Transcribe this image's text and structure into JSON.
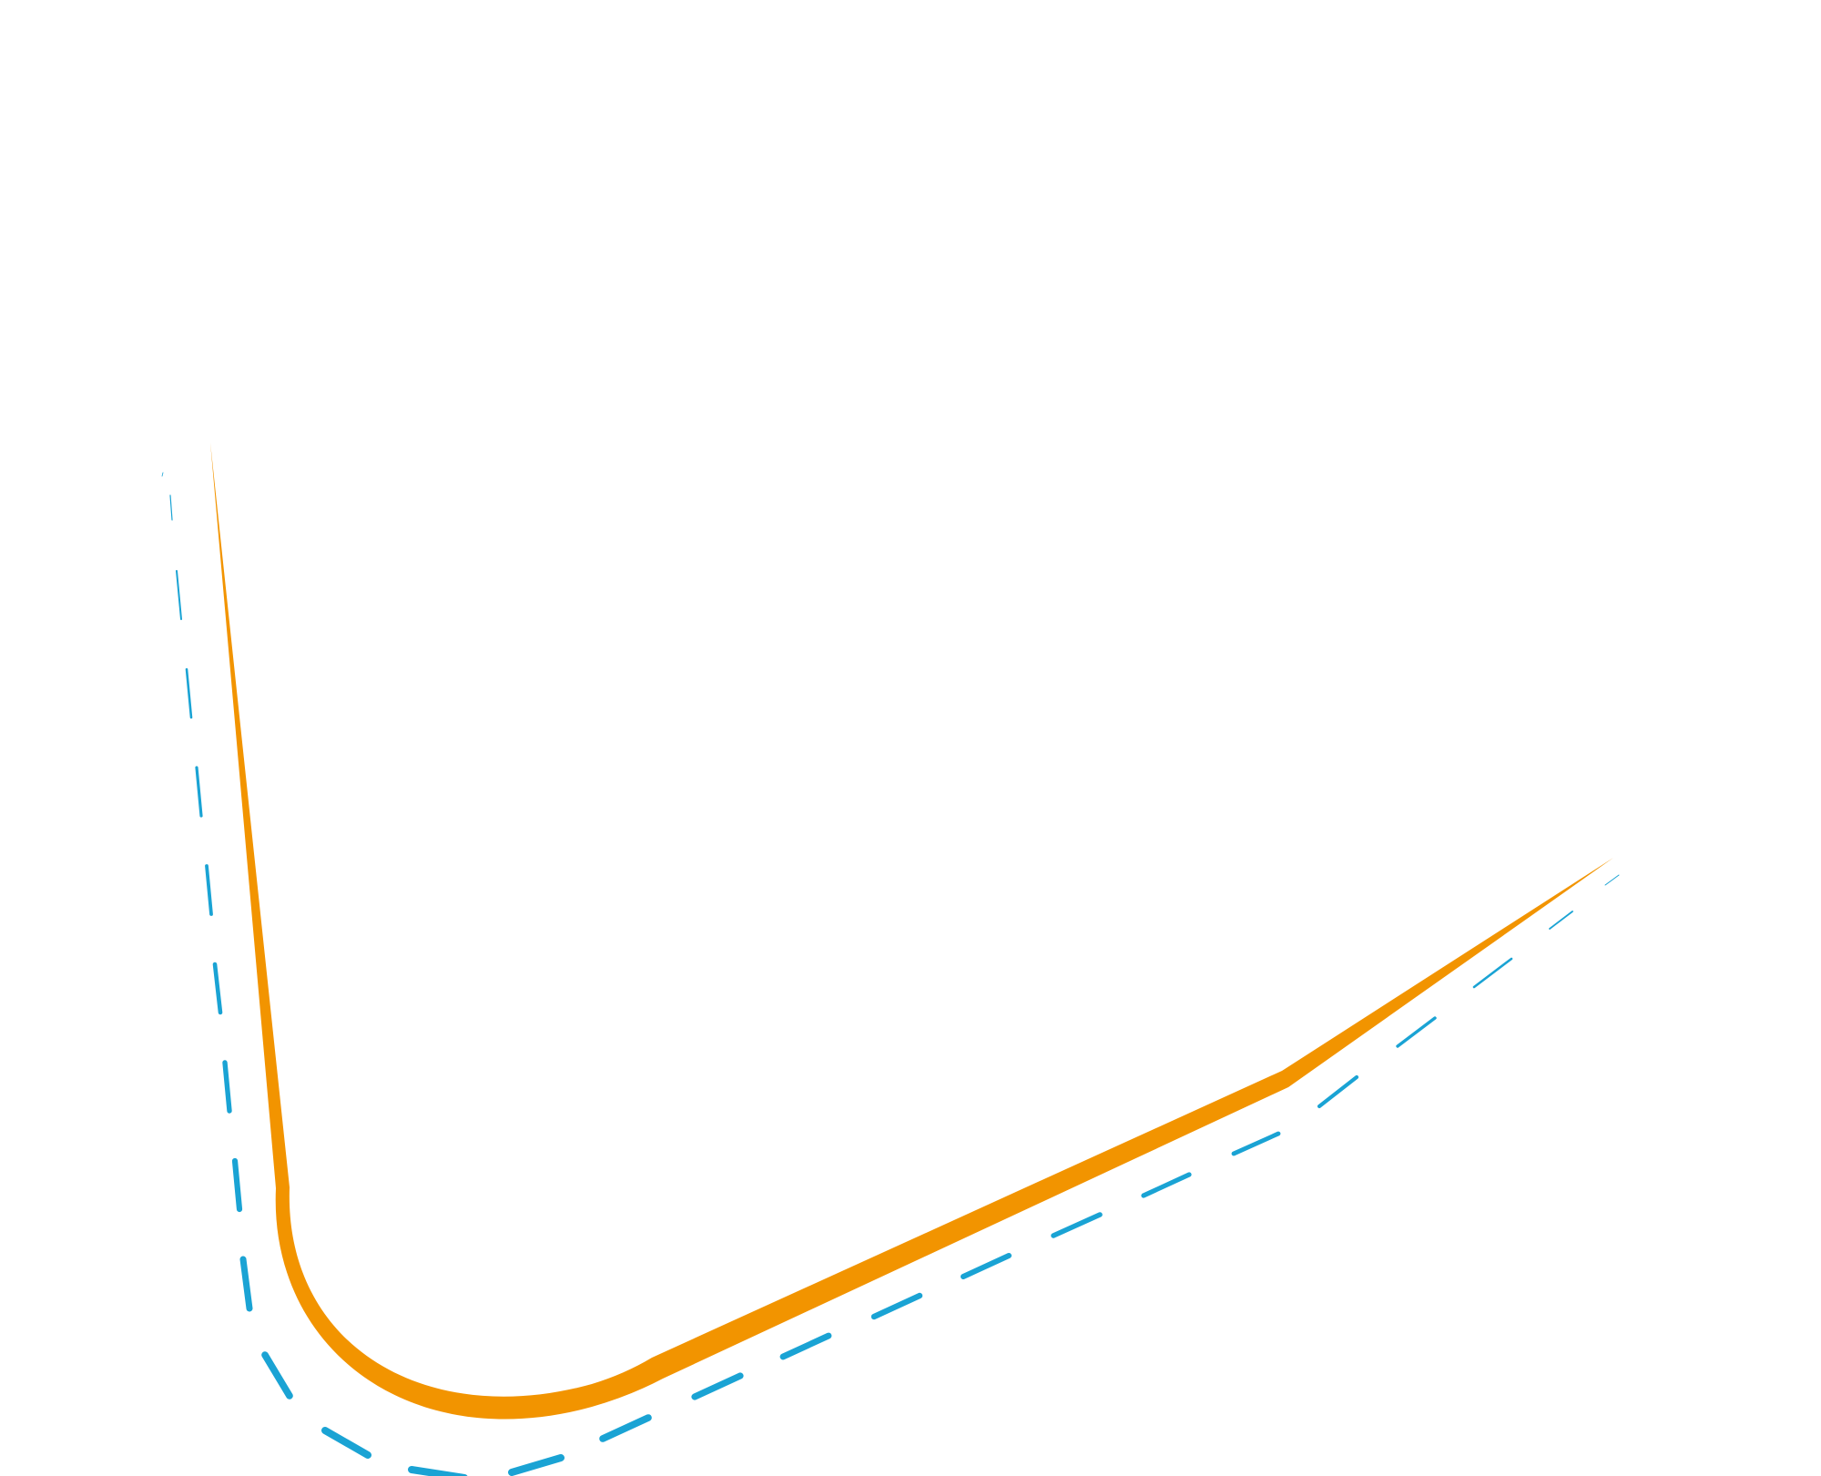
{
  "colors": {
    "background": "#ffffff",
    "orange_stroke": "#f29400",
    "blue_dashed_stroke": "#1aa3d4"
  },
  "shapes": {
    "orange_path": {
      "name": "orange-curved-line",
      "style": "solid tapered"
    },
    "blue_path": {
      "name": "blue-dashed-line",
      "style": "dashed tapered"
    }
  }
}
